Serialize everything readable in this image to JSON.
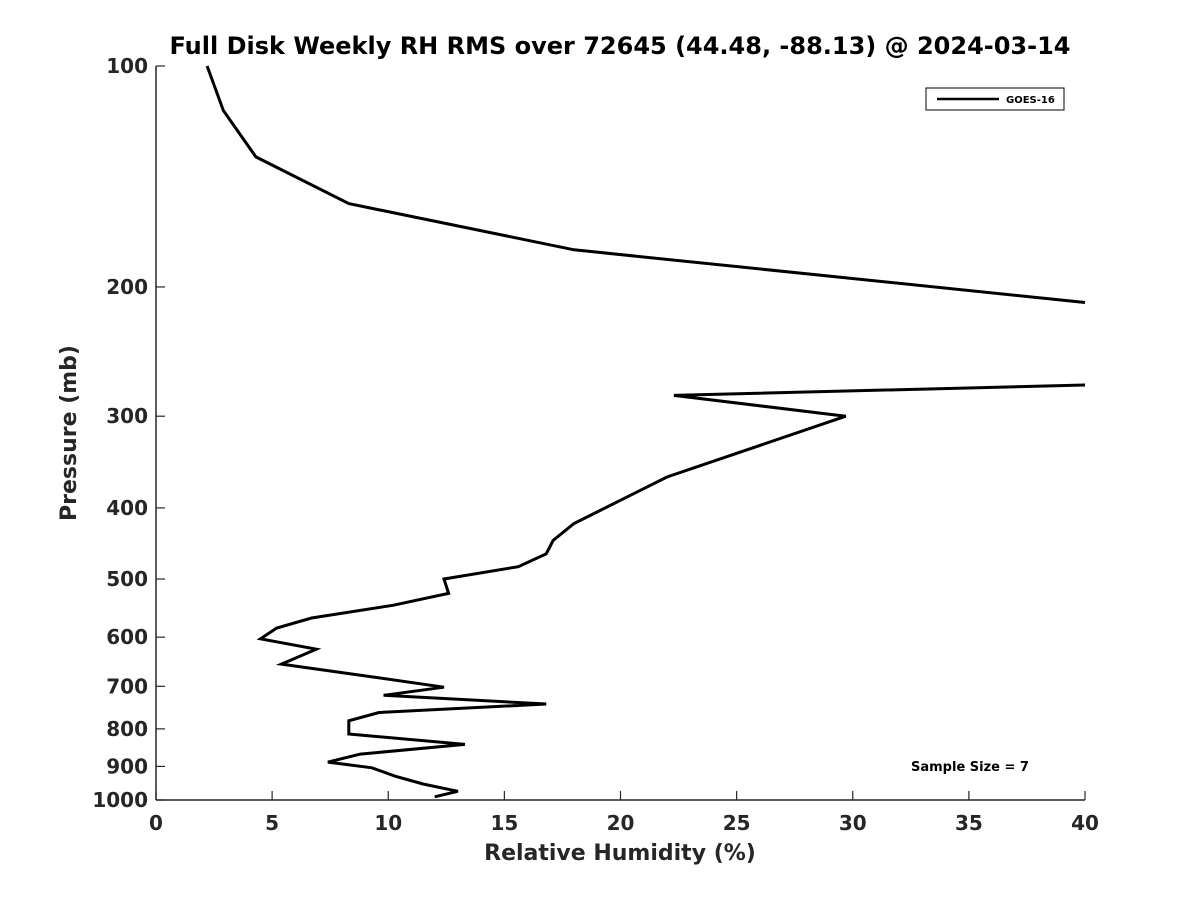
{
  "chart_data": {
    "type": "line",
    "title": "Full Disk Weekly RH RMS over 72645 (44.48, -88.13) @ 2024-03-14",
    "xlabel": "Relative Humidity (%)",
    "ylabel": "Pressure (mb)",
    "xlim": [
      0,
      40
    ],
    "ylim": [
      100,
      1000
    ],
    "yscale": "log",
    "y_reversed": true,
    "grid": false,
    "x_ticks": [
      "0",
      "5",
      "10",
      "15",
      "20",
      "25",
      "30",
      "35",
      "40"
    ],
    "y_ticks": [
      "100",
      "200",
      "300",
      "400",
      "500",
      "600",
      "700",
      "800",
      "900",
      "1000"
    ],
    "legend": {
      "position": "top-right",
      "entries": [
        "GOES-16"
      ]
    },
    "annotation": "Sample Size = 7",
    "series": [
      {
        "name": "GOES-16",
        "color": "#000000",
        "x": [
          2.2,
          2.9,
          4.3,
          8.3,
          18.0,
          40.0,
          null,
          40.0,
          22.3,
          29.7,
          22.0,
          18.0,
          17.1,
          16.8,
          15.6,
          12.4,
          12.6,
          10.2,
          6.7,
          5.2,
          4.5,
          6.9,
          5.4,
          9.5,
          12.4,
          9.8,
          16.8,
          9.6,
          8.3,
          8.3,
          13.3,
          8.8,
          7.4,
          9.3,
          10.3,
          11.5,
          13.0,
          12.0
        ],
        "y": [
          100,
          115,
          133,
          154,
          178,
          210,
          null,
          272,
          281,
          300,
          363,
          420,
          443,
          462,
          481,
          500,
          523,
          543,
          565,
          583,
          603,
          623,
          653,
          681,
          702,
          720,
          740,
          760,
          780,
          813,
          840,
          866,
          888,
          904,
          928,
          951,
          973,
          990
        ]
      }
    ]
  }
}
